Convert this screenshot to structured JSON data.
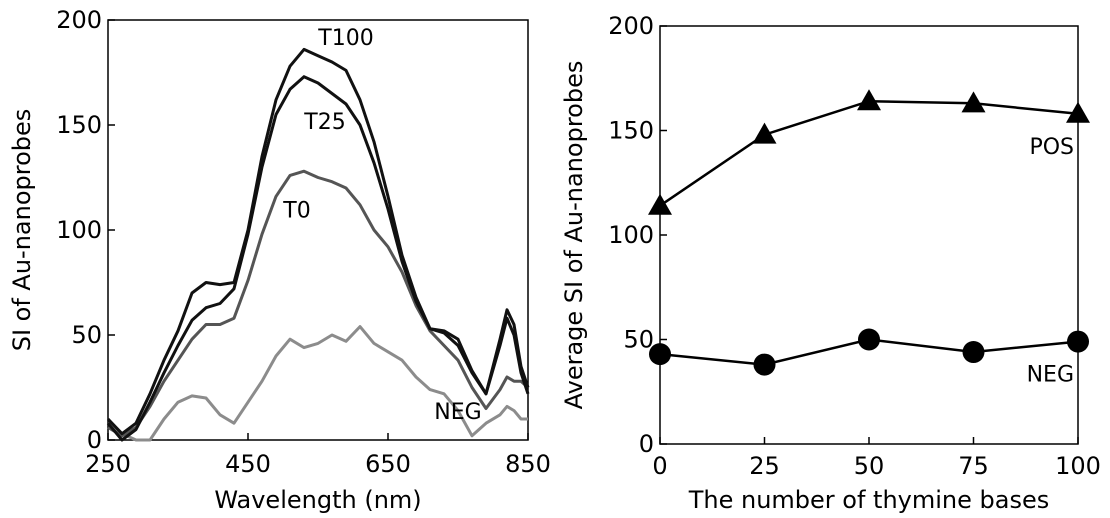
{
  "chart_data": [
    {
      "type": "line",
      "title": "",
      "xlabel": "Wavelength (nm)",
      "ylabel": "SI of Au-nanoprobes",
      "xlim": [
        250,
        850
      ],
      "ylim": [
        0,
        200
      ],
      "xticks": [
        "250",
        "450",
        "650",
        "850"
      ],
      "yticks": [
        "0",
        "50",
        "100",
        "150",
        "200"
      ],
      "grid": false,
      "series": [
        {
          "name": "T100",
          "color": "#111111",
          "x": [
            250,
            270,
            290,
            310,
            330,
            350,
            370,
            390,
            410,
            430,
            450,
            470,
            490,
            510,
            530,
            550,
            570,
            590,
            610,
            630,
            650,
            670,
            690,
            710,
            730,
            750,
            770,
            790,
            810,
            820,
            830,
            840,
            850
          ],
          "y": [
            10,
            3,
            8,
            22,
            38,
            52,
            70,
            75,
            74,
            75,
            100,
            135,
            162,
            178,
            186,
            183,
            180,
            176,
            162,
            142,
            116,
            88,
            68,
            53,
            52,
            48,
            33,
            22,
            48,
            62,
            55,
            35,
            25
          ]
        },
        {
          "name": "T25",
          "color": "#111111",
          "x": [
            250,
            270,
            290,
            310,
            330,
            350,
            370,
            390,
            410,
            430,
            450,
            470,
            490,
            510,
            530,
            550,
            570,
            590,
            610,
            630,
            650,
            670,
            690,
            710,
            730,
            750,
            770,
            790,
            810,
            820,
            830,
            840,
            850
          ],
          "y": [
            8,
            0,
            5,
            18,
            32,
            45,
            57,
            63,
            65,
            72,
            98,
            130,
            155,
            167,
            173,
            170,
            165,
            160,
            150,
            132,
            110,
            85,
            66,
            53,
            51,
            45,
            32,
            22,
            45,
            58,
            50,
            32,
            22
          ]
        },
        {
          "name": "T0",
          "color": "#555555",
          "x": [
            250,
            270,
            290,
            310,
            330,
            350,
            370,
            390,
            410,
            430,
            450,
            470,
            490,
            510,
            530,
            550,
            570,
            590,
            610,
            630,
            650,
            670,
            690,
            710,
            730,
            750,
            770,
            790,
            810,
            820,
            830,
            840,
            850
          ],
          "y": [
            6,
            2,
            6,
            16,
            28,
            38,
            48,
            55,
            55,
            58,
            76,
            98,
            116,
            126,
            128,
            125,
            123,
            120,
            112,
            100,
            92,
            80,
            64,
            52,
            45,
            38,
            25,
            15,
            24,
            30,
            28,
            28,
            25
          ]
        },
        {
          "name": "NEG",
          "color": "#8c8c8c",
          "x": [
            250,
            270,
            290,
            310,
            330,
            350,
            370,
            390,
            410,
            430,
            450,
            470,
            490,
            510,
            530,
            550,
            570,
            590,
            610,
            630,
            650,
            670,
            690,
            710,
            730,
            750,
            770,
            790,
            810,
            820,
            830,
            840,
            850
          ],
          "y": [
            8,
            3,
            0,
            0,
            10,
            18,
            21,
            20,
            12,
            8,
            18,
            28,
            40,
            48,
            44,
            46,
            50,
            47,
            54,
            46,
            42,
            38,
            30,
            24,
            22,
            14,
            2,
            8,
            12,
            16,
            14,
            10,
            10
          ]
        }
      ],
      "annotations": [
        {
          "text": "T100",
          "x": 590,
          "y": 188
        },
        {
          "text": "T25",
          "x": 560,
          "y": 148
        },
        {
          "text": "T0",
          "x": 520,
          "y": 106
        },
        {
          "text": "NEG",
          "x": 750,
          "y": 10
        }
      ]
    },
    {
      "type": "line",
      "title": "",
      "xlabel": "The number of thymine bases",
      "ylabel": "Average SI of Au-nanoprobes",
      "xlim": [
        0,
        100
      ],
      "ylim": [
        0,
        200
      ],
      "xticks": [
        "0",
        "25",
        "50",
        "75",
        "100"
      ],
      "yticks": [
        "0",
        "50",
        "100",
        "150",
        "200"
      ],
      "grid": false,
      "series": [
        {
          "name": "POS",
          "marker": "triangle",
          "color": "#000000",
          "x": [
            0,
            25,
            50,
            75,
            100
          ],
          "y": [
            114,
            148,
            164,
            163,
            158
          ]
        },
        {
          "name": "NEG",
          "marker": "circle",
          "color": "#000000",
          "x": [
            0,
            25,
            50,
            75,
            100
          ],
          "y": [
            43,
            38,
            50,
            44,
            49
          ]
        }
      ]
    }
  ]
}
